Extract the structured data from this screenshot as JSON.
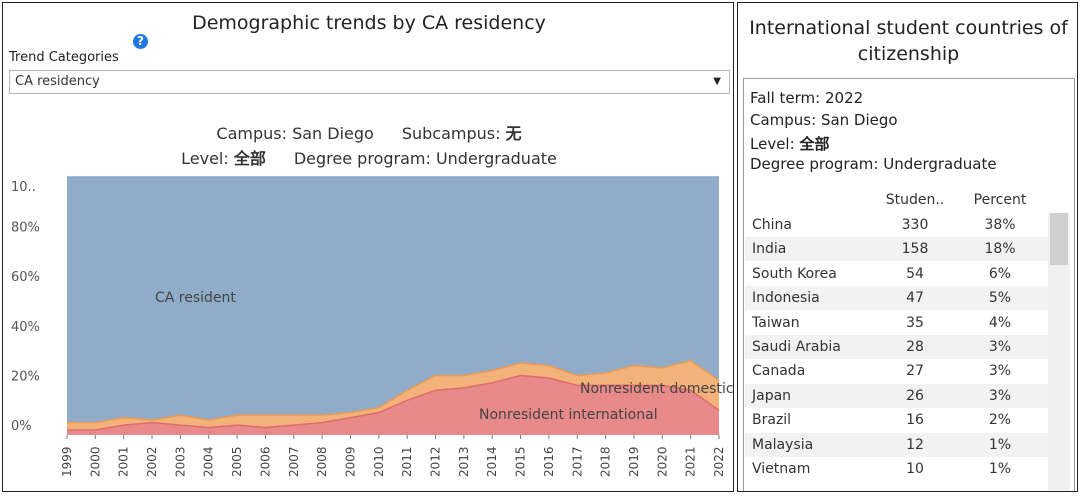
{
  "left_panel": {
    "title": "Demographic trends by CA residency",
    "help_icon": "?",
    "trend_label": "Trend Categories",
    "trend_select_value": "CA residency",
    "filters": {
      "campus_label": "Campus: San Diego",
      "subcampus_label": "Subcampus:",
      "subcampus_value": "无",
      "level_label": "Level:",
      "level_value": "全部",
      "degree_label": "Degree program: Undergraduate"
    }
  },
  "chart_data": {
    "type": "area",
    "stacked": true,
    "x": [
      "1999",
      "2000",
      "2001",
      "2002",
      "2003",
      "2004",
      "2005",
      "2006",
      "2007",
      "2008",
      "2009",
      "2010",
      "2011",
      "2012",
      "2013",
      "2014",
      "2015",
      "2016",
      "2017",
      "2018",
      "2019",
      "2020",
      "2021",
      "2022"
    ],
    "series": [
      {
        "name": "Nonresident international",
        "color": "#e8898a",
        "values": [
          -2,
          -2,
          0,
          1,
          0,
          -1,
          0,
          -1,
          0,
          1,
          3,
          5,
          10,
          14,
          15,
          17,
          20,
          19,
          16,
          16,
          16,
          16,
          14,
          6
        ]
      },
      {
        "name": "Nonresident domestic",
        "color": "#f2b27a",
        "values": [
          3,
          3,
          3,
          1,
          4,
          3,
          4,
          5,
          4,
          3,
          2,
          2,
          4,
          6,
          5,
          5,
          5,
          5,
          4,
          5,
          8,
          7,
          12,
          12
        ]
      },
      {
        "name": "CA resident",
        "color": "#90acc9",
        "values": [
          99,
          99,
          97,
          98,
          96,
          98,
          96,
          96,
          96,
          96,
          95,
          93,
          86,
          80,
          80,
          78,
          75,
          76,
          80,
          79,
          76,
          77,
          74,
          82
        ]
      }
    ],
    "labels": {
      "ca_resident": "CA resident",
      "nonresident_domestic": "Nonresident domestic",
      "nonresident_international": "Nonresident international"
    },
    "y_ticks": [
      "10..",
      "80%",
      "60%",
      "40%",
      "20%",
      "0%"
    ],
    "y_tick_values": [
      100,
      80,
      60,
      40,
      20,
      0
    ],
    "ylim": [
      -4,
      100
    ],
    "grid": false
  },
  "right_panel": {
    "title": "International student countries of citizenship",
    "info": {
      "fall_term": "Fall term: 2022",
      "campus": "Campus: San Diego",
      "level_label": "Level:",
      "level_value": "全部",
      "degree": "Degree program: Undergraduate"
    },
    "columns": {
      "students": "Studen..",
      "percent": "Percent"
    },
    "rows": [
      {
        "country": "China",
        "students": "330",
        "percent": "38%"
      },
      {
        "country": "India",
        "students": "158",
        "percent": "18%"
      },
      {
        "country": "South Korea",
        "students": "54",
        "percent": "6%"
      },
      {
        "country": "Indonesia",
        "students": "47",
        "percent": "5%"
      },
      {
        "country": "Taiwan",
        "students": "35",
        "percent": "4%"
      },
      {
        "country": "Saudi Arabia",
        "students": "28",
        "percent": "3%"
      },
      {
        "country": "Canada",
        "students": "27",
        "percent": "3%"
      },
      {
        "country": "Japan",
        "students": "26",
        "percent": "3%"
      },
      {
        "country": "Brazil",
        "students": "16",
        "percent": "2%"
      },
      {
        "country": "Malaysia",
        "students": "12",
        "percent": "1%"
      },
      {
        "country": "Vietnam",
        "students": "10",
        "percent": "1%"
      }
    ]
  }
}
